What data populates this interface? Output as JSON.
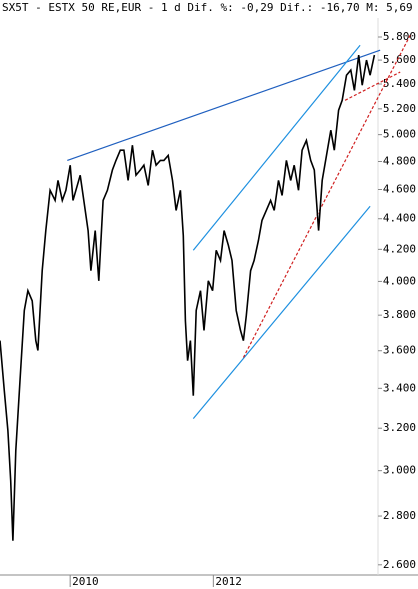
{
  "chart_data": {
    "type": "line",
    "title": "SX5T - ESTX 50 RE,EUR -  1 d Dif. %: -0,29 Dif.: -16,70 M: 5,69",
    "log_scale": true,
    "xlim": [
      2009.02,
      2014.3
    ],
    "xticks": [
      2010,
      2012
    ],
    "ylim": [
      2560,
      5970
    ],
    "yticks": [
      {
        "value": 2600,
        "label": "2.600"
      },
      {
        "value": 2800,
        "label": "2.800"
      },
      {
        "value": 3000,
        "label": "3.000"
      },
      {
        "value": 3200,
        "label": "3.200"
      },
      {
        "value": 3400,
        "label": "3.400"
      },
      {
        "value": 3600,
        "label": "3.600"
      },
      {
        "value": 3800,
        "label": "3.800"
      },
      {
        "value": 4000,
        "label": "4.000"
      },
      {
        "value": 4200,
        "label": "4.200"
      },
      {
        "value": 4400,
        "label": "4.400"
      },
      {
        "value": 4600,
        "label": "4.600"
      },
      {
        "value": 4800,
        "label": "4.800"
      },
      {
        "value": 5000,
        "label": "5.000"
      },
      {
        "value": 5200,
        "label": "5.200"
      },
      {
        "value": 5400,
        "label": "5.400"
      },
      {
        "value": 5600,
        "label": "5.600"
      },
      {
        "value": 5800,
        "label": "5.800"
      }
    ],
    "x": [
      2009.02,
      2009.08,
      2009.13,
      2009.17,
      2009.2,
      2009.24,
      2009.3,
      2009.36,
      2009.41,
      2009.47,
      2009.52,
      2009.55,
      2009.61,
      2009.66,
      2009.72,
      2009.79,
      2009.83,
      2009.89,
      2009.94,
      2010.0,
      2010.04,
      2010.08,
      2010.14,
      2010.19,
      2010.25,
      2010.29,
      2010.35,
      2010.4,
      2010.46,
      2010.52,
      2010.59,
      2010.64,
      2010.7,
      2010.75,
      2010.81,
      2010.87,
      2010.92,
      2010.98,
      2011.03,
      2011.09,
      2011.15,
      2011.2,
      2011.26,
      2011.31,
      2011.37,
      2011.43,
      2011.48,
      2011.54,
      2011.58,
      2011.61,
      2011.64,
      2011.68,
      2011.72,
      2011.76,
      2011.82,
      2011.87,
      2011.93,
      2011.99,
      2012.04,
      2012.1,
      2012.15,
      2012.21,
      2012.26,
      2012.32,
      2012.38,
      2012.42,
      2012.46,
      2012.52,
      2012.57,
      2012.63,
      2012.68,
      2012.74,
      2012.8,
      2012.85,
      2012.91,
      2012.96,
      2013.02,
      2013.08,
      2013.13,
      2013.19,
      2013.24,
      2013.3,
      2013.36,
      2013.41,
      2013.47,
      2013.52,
      2013.58,
      2013.64,
      2013.69,
      2013.75,
      2013.8,
      2013.86,
      2013.92,
      2013.97,
      2014.03,
      2014.08,
      2014.14,
      2014.19,
      2014.25
    ],
    "series": [
      {
        "name": "SX5T",
        "color": "#000000",
        "values": [
          3656,
          3388,
          3188,
          2954,
          2697,
          3094,
          3440,
          3827,
          3944,
          3884,
          3656,
          3601,
          4066,
          4321,
          4594,
          4524,
          4664,
          4524,
          4594,
          4773,
          4524,
          4594,
          4701,
          4524,
          4321,
          4066,
          4321,
          4004,
          4524,
          4594,
          4738,
          4808,
          4883,
          4883,
          4664,
          4920,
          4701,
          4738,
          4773,
          4629,
          4883,
          4773,
          4808,
          4808,
          4845,
          4664,
          4456,
          4594,
          4288,
          3767,
          3546,
          3656,
          3362,
          3827,
          3944,
          3713,
          4004,
          3944,
          4194,
          4129,
          4321,
          4225,
          4129,
          3827,
          3713,
          3656,
          3797,
          4066,
          4129,
          4256,
          4389,
          4456,
          4524,
          4456,
          4664,
          4559,
          4808,
          4664,
          4773,
          4594,
          4883,
          4956,
          4808,
          4738,
          4321,
          4664,
          4845,
          5034,
          4883,
          5189,
          5268,
          5473,
          5515,
          5348,
          5643,
          5390,
          5600,
          5473,
          5643
        ]
      }
    ],
    "trendlines": [
      {
        "color": "#1f5fbf",
        "dashed": false,
        "x": [
          2009.96,
          2014.33
        ],
        "values": [
          4808,
          5685
        ]
      },
      {
        "color": "#1e90e0",
        "dashed": false,
        "x": [
          2011.72,
          2014.05
        ],
        "values": [
          4194,
          5728
        ]
      },
      {
        "color": "#1e90e0",
        "dashed": false,
        "x": [
          2011.72,
          2014.19
        ],
        "values": [
          3247,
          4484
        ]
      },
      {
        "color": "#d02020",
        "dashed": true,
        "x": [
          2012.42,
          2014.75
        ],
        "values": [
          3563,
          5816
        ]
      },
      {
        "color": "#d02020",
        "dashed": true,
        "x": [
          2013.84,
          2014.61
        ],
        "values": [
          5268,
          5499
        ]
      }
    ]
  }
}
